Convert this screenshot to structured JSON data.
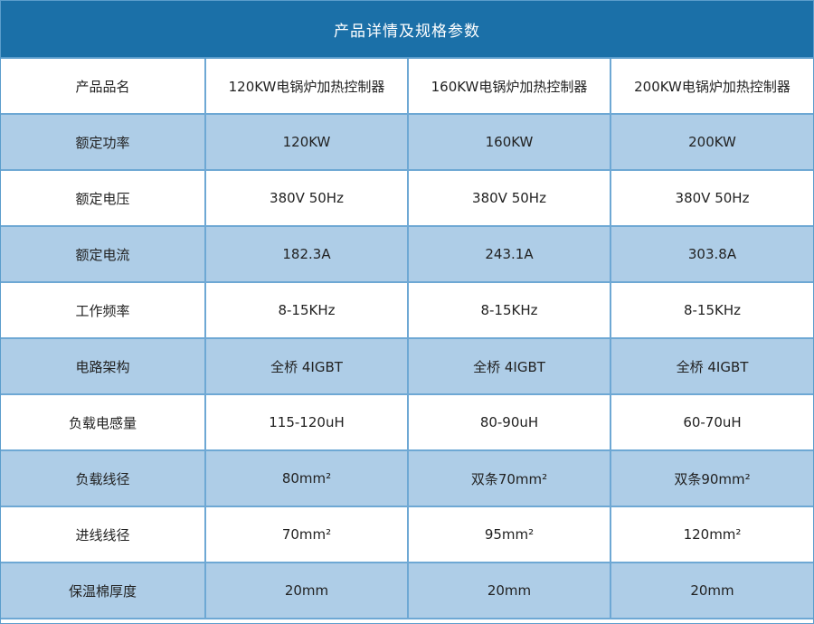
{
  "title": "产品详情及规格参数",
  "colors": {
    "header_bg": "#1b70a8",
    "alt_row_bg": "#aecde7",
    "border": "#6ea8d4"
  },
  "rows": [
    [
      "产品品名",
      "120KW电锅炉加热控制器",
      "160KW电锅炉加热控制器",
      "200KW电锅炉加热控制器"
    ],
    [
      "额定功率",
      "120KW",
      "160KW",
      "200KW"
    ],
    [
      "额定电压",
      "380V 50Hz",
      "380V 50Hz",
      "380V 50Hz"
    ],
    [
      "额定电流",
      "182.3A",
      "243.1A",
      "303.8A"
    ],
    [
      "工作频率",
      "8-15KHz",
      "8-15KHz",
      "8-15KHz"
    ],
    [
      "电路架构",
      "全桥 4IGBT",
      "全桥 4IGBT",
      "全桥 4IGBT"
    ],
    [
      "负载电感量",
      "115-120uH",
      "80-90uH",
      "60-70uH"
    ],
    [
      "负载线径",
      "80mm²",
      "双条70mm²",
      "双条90mm²"
    ],
    [
      "进线线径",
      "70mm²",
      "95mm²",
      "120mm²"
    ],
    [
      "保温棉厚度",
      "20mm",
      "20mm",
      "20mm"
    ]
  ]
}
